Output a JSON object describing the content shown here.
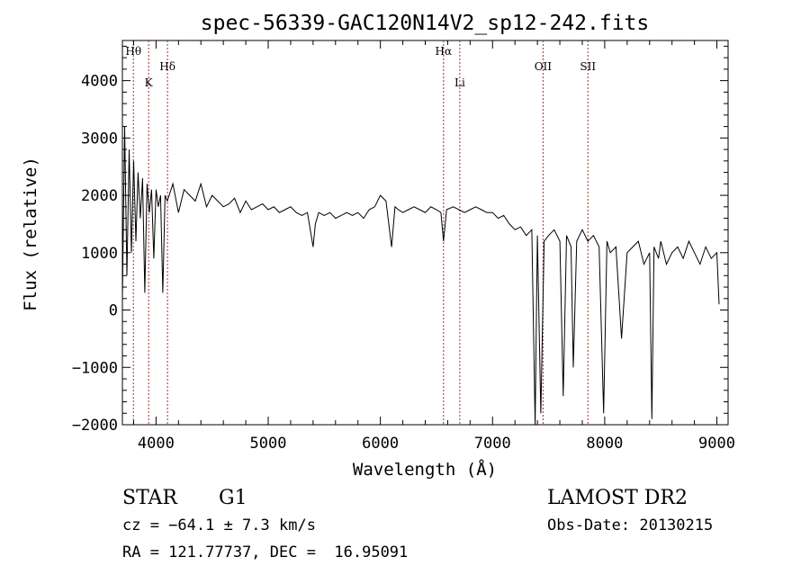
{
  "chart_data": {
    "type": "line",
    "title": "spec-56339-GAC120N14V2_sp12-242.fits",
    "xlabel": "Wavelength (Å)",
    "ylabel": "Flux (relative)",
    "xlim": [
      3700,
      9100
    ],
    "ylim": [
      -2000,
      4700
    ],
    "xticks": [
      "4000",
      "5000",
      "6000",
      "7000",
      "8000",
      "9000"
    ],
    "xtick_values": [
      4000,
      5000,
      6000,
      7000,
      8000,
      9000
    ],
    "yticks": [
      "−2000",
      "−1000",
      "0",
      "1000",
      "2000",
      "3000",
      "4000"
    ],
    "ytick_values": [
      -2000,
      -1000,
      0,
      1000,
      2000,
      3000,
      4000
    ],
    "grid": false,
    "line_color": "#000000",
    "marker_color": "#a0302a",
    "series": [
      {
        "x": [
          3700,
          3720,
          3740,
          3760,
          3780,
          3800,
          3820,
          3840,
          3860,
          3880,
          3900,
          3920,
          3940,
          3960,
          3980,
          4000,
          4020,
          4040,
          4060,
          4080,
          4100,
          4150,
          4200,
          4250,
          4300,
          4350,
          4400,
          4450,
          4500,
          4550,
          4600,
          4650,
          4700,
          4750,
          4800,
          4850,
          4900,
          4950,
          5000,
          5050,
          5100,
          5150,
          5200,
          5250,
          5300,
          5350,
          5400,
          5420,
          5450,
          5500,
          5550,
          5600,
          5650,
          5700,
          5750,
          5800,
          5850,
          5900,
          5950,
          6000,
          6050,
          6100,
          6130,
          6160,
          6200,
          6250,
          6300,
          6350,
          6400,
          6450,
          6500,
          6540,
          6563,
          6590,
          6650,
          6700,
          6750,
          6800,
          6850,
          6900,
          6950,
          7000,
          7050,
          7100,
          7150,
          7200,
          7250,
          7300,
          7350,
          7380,
          7400,
          7430,
          7460,
          7500,
          7550,
          7600,
          7630,
          7660,
          7700,
          7720,
          7750,
          7800,
          7850,
          7900,
          7950,
          7990,
          8020,
          8050,
          8100,
          8150,
          8200,
          8250,
          8300,
          8350,
          8400,
          8420,
          8440,
          8480,
          8500,
          8550,
          8600,
          8650,
          8700,
          8750,
          8800,
          8850,
          8900,
          8950,
          9000,
          9020
        ],
        "y": [
          200,
          3200,
          600,
          2800,
          1000,
          2600,
          1200,
          2400,
          1600,
          2300,
          300,
          2200,
          1700,
          2100,
          900,
          2100,
          1800,
          2000,
          300,
          2000,
          1900,
          2200,
          1700,
          2100,
          2000,
          1900,
          2200,
          1800,
          2000,
          1900,
          1800,
          1850,
          1950,
          1700,
          1900,
          1750,
          1800,
          1850,
          1750,
          1800,
          1700,
          1750,
          1800,
          1700,
          1650,
          1700,
          1100,
          1500,
          1700,
          1650,
          1700,
          1600,
          1650,
          1700,
          1650,
          1700,
          1600,
          1750,
          1800,
          2000,
          1900,
          1100,
          1800,
          1750,
          1700,
          1750,
          1800,
          1750,
          1700,
          1800,
          1750,
          1700,
          1200,
          1750,
          1800,
          1750,
          1700,
          1750,
          1800,
          1750,
          1700,
          1700,
          1600,
          1650,
          1500,
          1400,
          1450,
          1300,
          1400,
          -2000,
          1300,
          -1800,
          1200,
          1300,
          1400,
          1200,
          -1500,
          1300,
          1100,
          -1000,
          1200,
          1400,
          1200,
          1300,
          1100,
          -1800,
          1200,
          1000,
          1100,
          -500,
          1000,
          1100,
          1200,
          800,
          1000,
          -1900,
          1100,
          900,
          1200,
          800,
          1000,
          1100,
          900,
          1200,
          1000,
          800,
          1100,
          900,
          1000,
          100
        ]
      }
    ],
    "lines": [
      {
        "label": "Hθ",
        "x": 3798,
        "row": 0
      },
      {
        "label": "K",
        "x": 3934,
        "row": 1
      },
      {
        "label": "Hδ",
        "x": 4102,
        "row": 0
      },
      {
        "label": "Hα",
        "x": 6563,
        "row": 0
      },
      {
        "label": "Li",
        "x": 6708,
        "row": 1
      },
      {
        "label": "OII",
        "x": 7450,
        "row": 0
      },
      {
        "label": "SII",
        "x": 7850,
        "row": 0
      }
    ]
  },
  "footer": {
    "object_class": "STAR",
    "subclass": "G1",
    "survey": "LAMOST DR2",
    "redshift": "cz = −64.1 ± 7.3 km/s",
    "obs_date": "Obs-Date: 20130215",
    "coords": "RA = 121.77737, DEC =  16.95091"
  }
}
